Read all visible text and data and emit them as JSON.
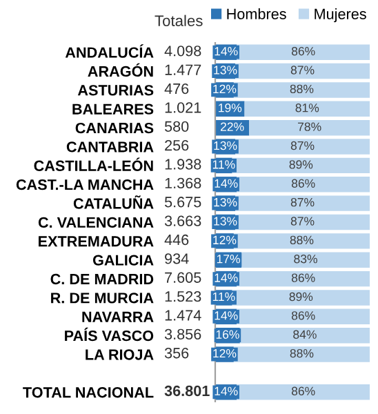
{
  "chart_data": {
    "type": "bar",
    "orientation": "horizontal",
    "stacked": true,
    "categories": [
      "ANDALUCÍA",
      "ARAGÓN",
      "ASTURIAS",
      "BALEARES",
      "CANARIAS",
      "CANTABRIA",
      "CASTILLA-LEÓN",
      "CAST.-LA MANCHA",
      "CATALUÑA",
      "C. VALENCIANA",
      "EXTREMADURA",
      "GALICIA",
      "C. DE MADRID",
      "R. DE MURCIA",
      "NAVARRA",
      "PAÍS VASCO",
      "LA RIOJA",
      null,
      "TOTAL NACIONAL"
    ],
    "series": [
      {
        "name": "Hombres",
        "color": "#2e75b6",
        "values": [
          14,
          13,
          12,
          19,
          22,
          13,
          11,
          14,
          13,
          13,
          12,
          17,
          14,
          11,
          14,
          16,
          12,
          null,
          14
        ],
        "value_labels": [
          "14%",
          "13%",
          "12%",
          "19%",
          "22%",
          "13%",
          "11%",
          "14%",
          "13%",
          "13%",
          "12%",
          "17%",
          "14%",
          "11%",
          "14%",
          "16%",
          "12%",
          null,
          "14%"
        ]
      },
      {
        "name": "Mujeres",
        "color": "#bdd7ee",
        "values": [
          86,
          87,
          88,
          81,
          78,
          87,
          89,
          86,
          87,
          87,
          88,
          83,
          86,
          89,
          86,
          84,
          88,
          null,
          86
        ],
        "value_labels": [
          "86%",
          "87%",
          "88%",
          "81%",
          "78%",
          "87%",
          "89%",
          "86%",
          "87%",
          "87%",
          "88%",
          "83%",
          "86%",
          "89%",
          "86%",
          "84%",
          "88%",
          null,
          "86%"
        ]
      }
    ],
    "annotations": [
      "Totales",
      "4.098",
      "1.477",
      "476",
      "1.021",
      "580",
      "256",
      "1.938",
      "1.368",
      "5.675",
      "3.663",
      "446",
      "934",
      "7.605",
      "1.523",
      "1.474",
      "3.856",
      "356",
      "36.801"
    ],
    "xlim": [
      0,
      100
    ],
    "tick_labels": "y",
    "legend": "top",
    "grid": false
  }
}
